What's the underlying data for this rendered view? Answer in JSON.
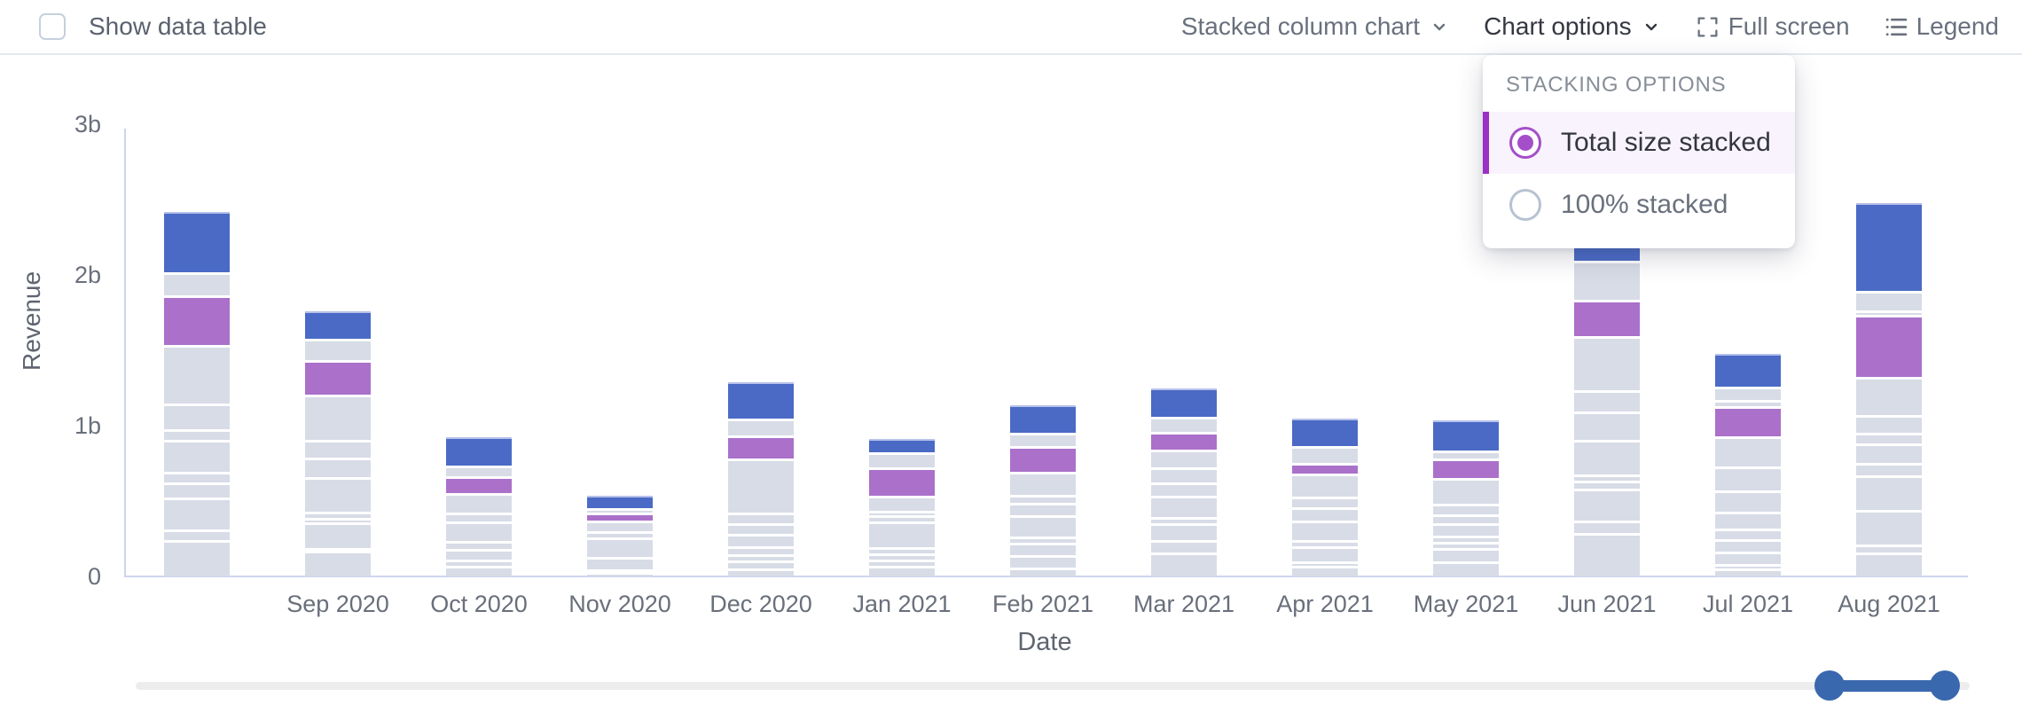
{
  "toolbar": {
    "show_data_table_label": "Show data table",
    "chart_type_label": "Stacked column chart",
    "chart_options_label": "Chart options",
    "full_screen_label": "Full screen",
    "legend_label": "Legend"
  },
  "icons": {
    "chart_type_caret": "chevron-down",
    "chart_options_caret": "chevron-down",
    "full_screen": "fullscreen-corners",
    "legend": "bulleted-list"
  },
  "dropdown": {
    "title": "STACKING OPTIONS",
    "options": [
      {
        "label": "Total size stacked",
        "selected": true
      },
      {
        "label": "100% stacked",
        "selected": false
      }
    ]
  },
  "colors": {
    "radio_selected": "#a44fc9",
    "selected_row_accent": "#9b30c4",
    "selected_row_bg": "#f8f3fc",
    "slider_blue": "#3a68ae",
    "axis_line": "#cdd4ee"
  },
  "chart_data": {
    "type": "bar",
    "stacked": true,
    "stacking_mode": "Total size stacked",
    "xlabel": "Date",
    "ylabel": "Revenue",
    "y_unit": "billions",
    "ylim": [
      0,
      3
    ],
    "grid": false,
    "legend_position": "hidden",
    "y_ticks": [
      {
        "label": "0",
        "value": 0
      },
      {
        "label": "1b",
        "value": 1
      },
      {
        "label": "2b",
        "value": 2
      },
      {
        "label": "3b",
        "value": 3
      }
    ],
    "palette": {
      "g": "#d7dce6",
      "p": "#aa70ca",
      "b": "#4a6ac6"
    },
    "x_tick_labels": [
      "",
      "Sep 2020",
      "Oct 2020",
      "Nov 2020",
      "Dec 2020",
      "Jan 2021",
      "Feb 2021",
      "Mar 2021",
      "Apr 2021",
      "May 2021",
      "Jun 2021",
      "Jul 2021",
      "Aug 2021"
    ],
    "bars": [
      {
        "label": "",
        "total": 2.41,
        "segments": [
          {
            "c": "g",
            "v": 0.24
          },
          {
            "c": "g",
            "v": 0.07
          },
          {
            "c": "g",
            "v": 0.21
          },
          {
            "c": "g",
            "v": 0.1
          },
          {
            "c": "g",
            "v": 0.07
          },
          {
            "c": "g",
            "v": 0.21
          },
          {
            "c": "g",
            "v": 0.07
          },
          {
            "c": "g",
            "v": 0.17
          },
          {
            "c": "g",
            "v": 0.39
          },
          {
            "c": "p",
            "v": 0.33
          },
          {
            "c": "g",
            "v": 0.15
          },
          {
            "c": "b",
            "v": 0.4
          }
        ]
      },
      {
        "label": "Sep 2020",
        "total": 1.76,
        "segments": [
          {
            "c": "g",
            "v": 0.17
          },
          {
            "c": "g",
            "v": 0.02
          },
          {
            "c": "g",
            "v": 0.17
          },
          {
            "c": "g",
            "v": 0.03
          },
          {
            "c": "g",
            "v": 0.04
          },
          {
            "c": "g",
            "v": 0.23
          },
          {
            "c": "g",
            "v": 0.13
          },
          {
            "c": "g",
            "v": 0.12
          },
          {
            "c": "g",
            "v": 0.3
          },
          {
            "c": "p",
            "v": 0.23
          },
          {
            "c": "g",
            "v": 0.14
          },
          {
            "c": "b",
            "v": 0.18
          }
        ]
      },
      {
        "label": "Oct 2020",
        "total": 0.92,
        "segments": [
          {
            "c": "g",
            "v": 0.07
          },
          {
            "c": "g",
            "v": 0.04
          },
          {
            "c": "g",
            "v": 0.07
          },
          {
            "c": "g",
            "v": 0.05
          },
          {
            "c": "g",
            "v": 0.13
          },
          {
            "c": "g",
            "v": 0.06
          },
          {
            "c": "g",
            "v": 0.13
          },
          {
            "c": "p",
            "v": 0.11
          },
          {
            "c": "g",
            "v": 0.07
          },
          {
            "c": "b",
            "v": 0.19
          }
        ]
      },
      {
        "label": "Nov 2020",
        "total": 0.53,
        "segments": [
          {
            "c": "g",
            "v": 0.03
          },
          {
            "c": "g",
            "v": 0.02
          },
          {
            "c": "g",
            "v": 0.08
          },
          {
            "c": "g",
            "v": 0.13
          },
          {
            "c": "g",
            "v": 0.04
          },
          {
            "c": "g",
            "v": 0.07
          },
          {
            "c": "p",
            "v": 0.05
          },
          {
            "c": "g",
            "v": 0.03
          },
          {
            "c": "b",
            "v": 0.08
          }
        ]
      },
      {
        "label": "Dec 2020",
        "total": 1.27,
        "segments": [
          {
            "c": "g",
            "v": 0.05
          },
          {
            "c": "g",
            "v": 0.05
          },
          {
            "c": "g",
            "v": 0.04
          },
          {
            "c": "g",
            "v": 0.05
          },
          {
            "c": "g",
            "v": 0.08
          },
          {
            "c": "g",
            "v": 0.07
          },
          {
            "c": "g",
            "v": 0.07
          },
          {
            "c": "g",
            "v": 0.36
          },
          {
            "c": "p",
            "v": 0.15
          },
          {
            "c": "g",
            "v": 0.11
          },
          {
            "c": "b",
            "v": 0.24
          }
        ]
      },
      {
        "label": "Jan 2021",
        "total": 0.91,
        "segments": [
          {
            "c": "g",
            "v": 0.07
          },
          {
            "c": "g",
            "v": 0.04
          },
          {
            "c": "g",
            "v": 0.04
          },
          {
            "c": "g",
            "v": 0.04
          },
          {
            "c": "g",
            "v": 0.17
          },
          {
            "c": "g",
            "v": 0.04
          },
          {
            "c": "g",
            "v": 0.03
          },
          {
            "c": "g",
            "v": 0.1
          },
          {
            "c": "p",
            "v": 0.19
          },
          {
            "c": "g",
            "v": 0.1
          },
          {
            "c": "b",
            "v": 0.09
          }
        ]
      },
      {
        "label": "Feb 2021",
        "total": 1.12,
        "segments": [
          {
            "c": "g",
            "v": 0.06
          },
          {
            "c": "g",
            "v": 0.08
          },
          {
            "c": "g",
            "v": 0.08
          },
          {
            "c": "g",
            "v": 0.04
          },
          {
            "c": "g",
            "v": 0.14
          },
          {
            "c": "g",
            "v": 0.08
          },
          {
            "c": "g",
            "v": 0.05
          },
          {
            "c": "g",
            "v": 0.15
          },
          {
            "c": "p",
            "v": 0.17
          },
          {
            "c": "g",
            "v": 0.09
          },
          {
            "c": "b",
            "v": 0.18
          }
        ]
      },
      {
        "label": "Mar 2021",
        "total": 1.25,
        "segments": [
          {
            "c": "g",
            "v": 0.16
          },
          {
            "c": "g",
            "v": 0.08
          },
          {
            "c": "g",
            "v": 0.11
          },
          {
            "c": "g",
            "v": 0.04
          },
          {
            "c": "g",
            "v": 0.14
          },
          {
            "c": "g",
            "v": 0.09
          },
          {
            "c": "g",
            "v": 0.1
          },
          {
            "c": "g",
            "v": 0.12
          },
          {
            "c": "p",
            "v": 0.12
          },
          {
            "c": "g",
            "v": 0.1
          },
          {
            "c": "b",
            "v": 0.19
          }
        ]
      },
      {
        "label": "Apr 2021",
        "total": 1.04,
        "segments": [
          {
            "c": "g",
            "v": 0.07
          },
          {
            "c": "g",
            "v": 0.03
          },
          {
            "c": "g",
            "v": 0.1
          },
          {
            "c": "g",
            "v": 0.04
          },
          {
            "c": "g",
            "v": 0.13
          },
          {
            "c": "g",
            "v": 0.09
          },
          {
            "c": "g",
            "v": 0.07
          },
          {
            "c": "g",
            "v": 0.15
          },
          {
            "c": "p",
            "v": 0.07
          },
          {
            "c": "g",
            "v": 0.11
          },
          {
            "c": "b",
            "v": 0.18
          }
        ]
      },
      {
        "label": "May 2021",
        "total": 1.03,
        "segments": [
          {
            "c": "g",
            "v": 0.1
          },
          {
            "c": "g",
            "v": 0.09
          },
          {
            "c": "g",
            "v": 0.04
          },
          {
            "c": "g",
            "v": 0.04
          },
          {
            "c": "g",
            "v": 0.08
          },
          {
            "c": "g",
            "v": 0.06
          },
          {
            "c": "g",
            "v": 0.07
          },
          {
            "c": "g",
            "v": 0.17
          },
          {
            "c": "p",
            "v": 0.13
          },
          {
            "c": "g",
            "v": 0.05
          },
          {
            "c": "b",
            "v": 0.2
          }
        ]
      },
      {
        "label": "Jun 2021",
        "total": 2.24,
        "segments": [
          {
            "c": "g",
            "v": 0.29
          },
          {
            "c": "g",
            "v": 0.08
          },
          {
            "c": "g",
            "v": 0.21
          },
          {
            "c": "g",
            "v": 0.05
          },
          {
            "c": "g",
            "v": 0.04
          },
          {
            "c": "g",
            "v": 0.23
          },
          {
            "c": "g",
            "v": 0.19
          },
          {
            "c": "g",
            "v": 0.14
          },
          {
            "c": "g",
            "v": 0.36
          },
          {
            "c": "p",
            "v": 0.24
          },
          {
            "c": "g",
            "v": 0.26
          },
          {
            "c": "b",
            "v": 0.15
          }
        ]
      },
      {
        "label": "Jul 2021",
        "total": 1.47,
        "segments": [
          {
            "c": "g",
            "v": 0.05
          },
          {
            "c": "g",
            "v": 0.03
          },
          {
            "c": "g",
            "v": 0.08
          },
          {
            "c": "g",
            "v": 0.08
          },
          {
            "c": "g",
            "v": 0.07
          },
          {
            "c": "g",
            "v": 0.11
          },
          {
            "c": "g",
            "v": 0.14
          },
          {
            "c": "g",
            "v": 0.16
          },
          {
            "c": "g",
            "v": 0.2
          },
          {
            "c": "p",
            "v": 0.2
          },
          {
            "c": "g",
            "v": 0.04
          },
          {
            "c": "g",
            "v": 0.09
          },
          {
            "c": "b",
            "v": 0.22
          }
        ]
      },
      {
        "label": "Aug 2021",
        "total": 2.47,
        "segments": [
          {
            "c": "g",
            "v": 0.16
          },
          {
            "c": "g",
            "v": 0.05
          },
          {
            "c": "g",
            "v": 0.23
          },
          {
            "c": "g",
            "v": 0.23
          },
          {
            "c": "g",
            "v": 0.08
          },
          {
            "c": "g",
            "v": 0.13
          },
          {
            "c": "g",
            "v": 0.07
          },
          {
            "c": "g",
            "v": 0.12
          },
          {
            "c": "g",
            "v": 0.25
          },
          {
            "c": "p",
            "v": 0.41
          },
          {
            "c": "g",
            "v": 0.03
          },
          {
            "c": "g",
            "v": 0.13
          },
          {
            "c": "b",
            "v": 0.58
          }
        ]
      }
    ]
  }
}
